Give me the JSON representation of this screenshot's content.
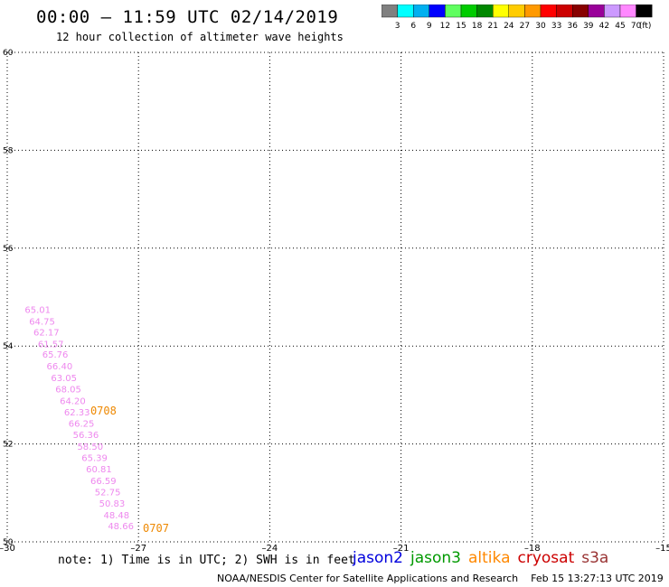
{
  "header": {
    "title": "00:00 – 11:59 UTC 02/14/2019",
    "subtitle": "12 hour collection of altimeter wave heights"
  },
  "colorbar": {
    "colors": [
      "#808080",
      "#00ffff",
      "#00b0f0",
      "#0000ff",
      "#60ff60",
      "#00cc00",
      "#008800",
      "#ffff00",
      "#ffcc00",
      "#ff9900",
      "#ff0000",
      "#cc0000",
      "#880000",
      "#990099",
      "#cc99ff",
      "#ff88ff",
      "#000000"
    ],
    "labels": [
      "3",
      "6",
      "9",
      "12",
      "15",
      "18",
      "21",
      "24",
      "27",
      "30",
      "33",
      "36",
      "39",
      "42",
      "45",
      "70"
    ],
    "unit": "(ft)"
  },
  "chart_data": {
    "type": "scatter",
    "xlim": [
      -30,
      -15
    ],
    "ylim": [
      50,
      60
    ],
    "x_ticks": [
      -30,
      -27,
      -24,
      -21,
      -18,
      -15
    ],
    "x_tick_labels": [
      "–30",
      "–27",
      "–24",
      "–21",
      "–18",
      "–15"
    ],
    "y_ticks": [
      50,
      52,
      54,
      56,
      58,
      60
    ],
    "grid": true,
    "series": [
      {
        "name": "s3a",
        "color": "#ee88ee",
        "points": [
          {
            "x": -29.6,
            "y": 54.68,
            "label": "65.01"
          },
          {
            "x": -29.5,
            "y": 54.44,
            "label": "64.75"
          },
          {
            "x": -29.4,
            "y": 54.22,
            "label": "62.17"
          },
          {
            "x": -29.3,
            "y": 53.98,
            "label": "61.57"
          },
          {
            "x": -29.2,
            "y": 53.76,
            "label": "65.76"
          },
          {
            "x": -29.1,
            "y": 53.52,
            "label": "66.40"
          },
          {
            "x": -29.0,
            "y": 53.28,
            "label": "63.05"
          },
          {
            "x": -28.9,
            "y": 53.05,
            "label": "68.05"
          },
          {
            "x": -28.8,
            "y": 52.81,
            "label": "64.20"
          },
          {
            "x": -28.7,
            "y": 52.58,
            "label": "62.33"
          },
          {
            "x": -28.6,
            "y": 52.35,
            "label": "66.25"
          },
          {
            "x": -28.5,
            "y": 52.12,
            "label": "56.36"
          },
          {
            "x": -28.4,
            "y": 51.88,
            "label": "58.50"
          },
          {
            "x": -28.3,
            "y": 51.65,
            "label": "65.39"
          },
          {
            "x": -28.2,
            "y": 51.42,
            "label": "60.81"
          },
          {
            "x": -28.1,
            "y": 51.18,
            "label": "66.59"
          },
          {
            "x": -28.0,
            "y": 50.95,
            "label": "52.75"
          },
          {
            "x": -27.9,
            "y": 50.72,
            "label": "50.83"
          },
          {
            "x": -27.8,
            "y": 50.48,
            "label": "48.48"
          },
          {
            "x": -27.7,
            "y": 50.26,
            "label": "48.66"
          }
        ]
      }
    ],
    "time_labels": [
      {
        "x": -28.1,
        "y": 52.6,
        "label": "0708",
        "color": "#ee8800"
      },
      {
        "x": -26.9,
        "y": 50.2,
        "label": "0707",
        "color": "#ee8800"
      }
    ]
  },
  "footer": {
    "note": "note: 1) Time is in UTC; 2) SWH is in feet",
    "legend": [
      {
        "label": "jason2",
        "color": "#0000dd"
      },
      {
        "label": "jason3",
        "color": "#009900"
      },
      {
        "label": "altika",
        "color": "#ff8800"
      },
      {
        "label": "cryosat",
        "color": "#cc0000"
      },
      {
        "label": "s3a",
        "color": "#993333"
      }
    ],
    "credit": "NOAA/NESDIS Center for Satellite Applications and Research",
    "timestamp": "Feb 15 13:27:13 UTC 2019"
  }
}
